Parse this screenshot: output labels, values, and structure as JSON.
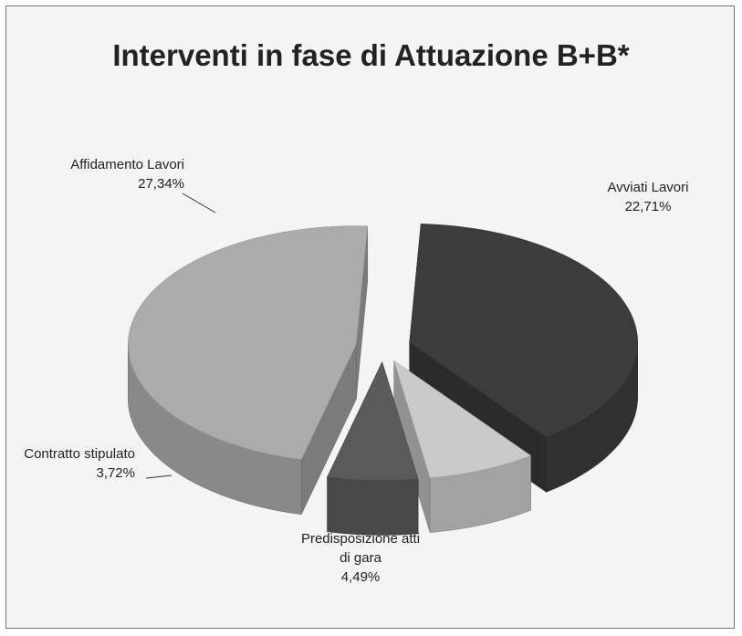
{
  "chart_data": {
    "type": "pie3d",
    "title": "Interventi in fase di Attuazione B+B*",
    "categories": [
      "Avviati Lavori",
      "Predisposizione atti di gara",
      "Contratto stipulato",
      "Affidamento Lavori"
    ],
    "values": [
      22.71,
      4.49,
      3.72,
      27.34
    ],
    "value_labels": [
      "22,71%",
      "4,49%",
      "3,72%",
      "27,34%"
    ],
    "colors": [
      "#3c3c3c",
      "#cacaca",
      "#5a5a5a",
      "#ababab"
    ]
  }
}
